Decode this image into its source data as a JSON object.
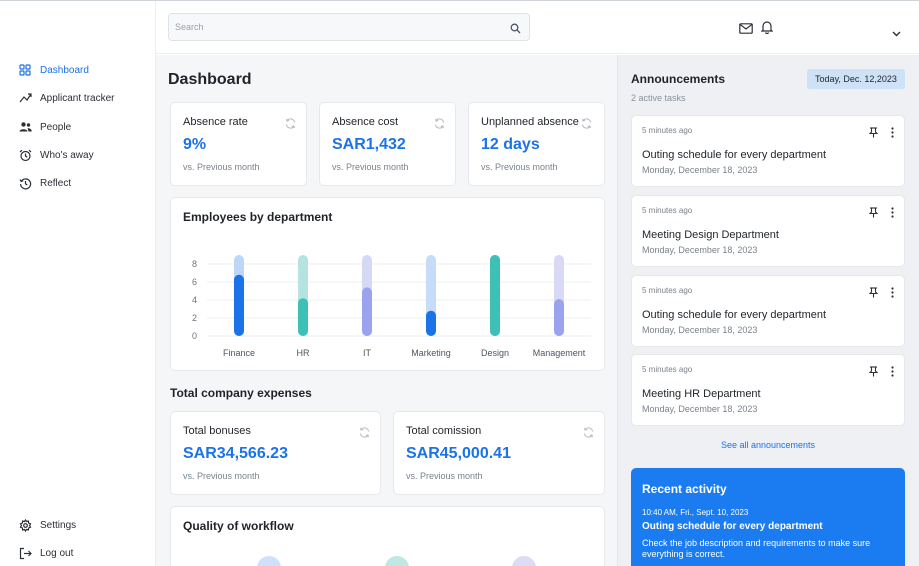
{
  "search": {
    "placeholder": "Search"
  },
  "sidebar": {
    "items": [
      {
        "label": "Dashboard",
        "icon": "grid-icon",
        "active": true
      },
      {
        "label": "Applicant tracker",
        "icon": "trend-icon"
      },
      {
        "label": "People",
        "icon": "people-icon"
      },
      {
        "label": "Who's away",
        "icon": "alarm-icon"
      },
      {
        "label": "Reflect",
        "icon": "history-icon"
      }
    ],
    "bottom": [
      {
        "label": "Settings",
        "icon": "gear-icon"
      },
      {
        "label": "Log out",
        "icon": "logout-icon"
      }
    ]
  },
  "main": {
    "title": "Dashboard",
    "stats": [
      {
        "title": "Absence rate",
        "value": "9%",
        "sub": "vs. Previous month"
      },
      {
        "title": "Absence cost",
        "value": "SAR1,432",
        "sub": "vs. Previous month"
      },
      {
        "title": "Unplanned absence",
        "value": "12 days",
        "sub": "vs. Previous month"
      }
    ],
    "employees_title": "Employees by department",
    "expenses_title": "Total company expenses",
    "expenses": [
      {
        "title": "Total bonuses",
        "value": "SAR34,566.23",
        "sub": "vs. Previous month"
      },
      {
        "title": "Total comission",
        "value": "SAR45,000.41",
        "sub": "vs. Previous month"
      }
    ],
    "workflow_title": "Quality of workflow"
  },
  "chart_data": {
    "type": "bar",
    "title": "Employees by department",
    "categories": [
      "Finance",
      "HR",
      "IT",
      "Marketing",
      "Design",
      "Management"
    ],
    "series": [
      {
        "values": [
          9,
          9,
          9,
          9,
          9,
          9
        ]
      },
      {
        "values": [
          6.8,
          4.2,
          5.4,
          2.8,
          9,
          4.1
        ]
      }
    ],
    "yticks": [
      0,
      2,
      4,
      6,
      8
    ],
    "ylim": [
      0,
      9
    ],
    "colors_light": [
      "#bcd7fb",
      "#b6e3e0",
      "#d6d9f5",
      "#c6dcf8",
      "#3fc0b6",
      "#d8d9f5"
    ],
    "colors_dark": [
      "#1a73e8",
      "#3fc0b6",
      "#9aa3ee",
      "#1a73e8",
      "#3fc0b6",
      "#9aa3ee"
    ],
    "grid": true
  },
  "announcements": {
    "title": "Announcements",
    "sub": "2 active tasks",
    "date_badge": "Today, Dec. 12,2023",
    "items": [
      {
        "time": "5 minutes ago",
        "name": "Outing schedule for every department",
        "date": "Monday, December 18, 2023"
      },
      {
        "time": "5 minutes ago",
        "name": "Meeting Design Department",
        "date": "Monday, December 18, 2023"
      },
      {
        "time": "5 minutes ago",
        "name": "Outing schedule for every department",
        "date": "Monday, December 18, 2023"
      },
      {
        "time": "5 minutes ago",
        "name": "Meeting HR Department",
        "date": "Monday, December 18, 2023"
      }
    ],
    "see_all": "See all announcements"
  },
  "activity": {
    "title": "Recent activity",
    "time": "10:40 AM, Fri., Sept. 10, 2023",
    "event": "Outing schedule for every department",
    "desc": "Check the job description and requirements to make sure everything is correct."
  },
  "colors": {
    "accent": "#1a73e8",
    "teal": "#3fc0b6",
    "lavender": "#9aa3ee"
  }
}
